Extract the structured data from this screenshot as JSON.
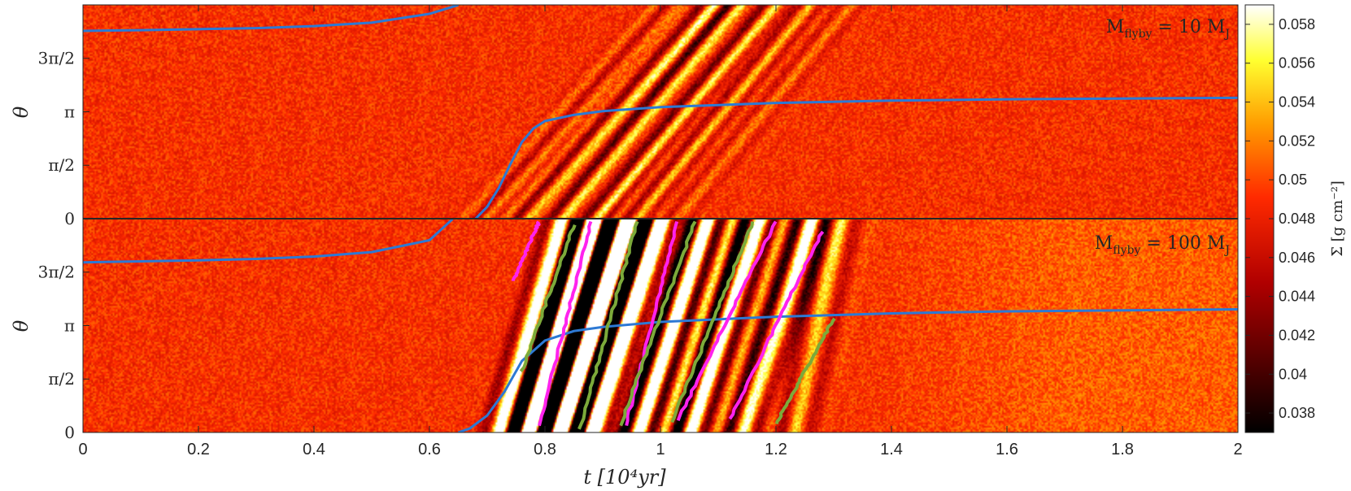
{
  "chart_data": {
    "type": "heatmap",
    "xlabel": "t [10⁴yr]",
    "ylabel": "θ",
    "xlim": [
      0,
      2
    ],
    "xticks": [
      0,
      0.2,
      0.4,
      0.6,
      0.8,
      1,
      1.2,
      1.4,
      1.6,
      1.8,
      2
    ],
    "xtick_labels": [
      "0",
      "0.2",
      "0.4",
      "0.6",
      "0.8",
      "1",
      "1.2",
      "1.4",
      "1.6",
      "1.8",
      "2"
    ],
    "ylim_rad": [
      0,
      6.283
    ],
    "yticks_rad": [
      0,
      1.5708,
      3.1416,
      4.7124
    ],
    "ytick_labels": [
      "0",
      "π/2",
      "π",
      "3π/2"
    ],
    "colorbar": {
      "label": "Σ [g cm⁻²]",
      "min": 0.037,
      "max": 0.059,
      "ticks": [
        0.038,
        0.04,
        0.042,
        0.044,
        0.046,
        0.048,
        0.05,
        0.052,
        0.054,
        0.056,
        0.058
      ],
      "tick_labels": [
        "0.038",
        "0.04",
        "0.042",
        "0.044",
        "0.046",
        "0.048",
        "0.05",
        "0.052",
        "0.054",
        "0.056",
        "0.058"
      ],
      "colormap": "hot"
    },
    "panels": [
      {
        "label": "M_flyby = 10 M_J",
        "label_main": "M",
        "label_sub": "flyby",
        "label_rest": " = 10 M",
        "label_sub2": "J",
        "background_sigma": 0.049,
        "perturber_angle": {
          "t": [
            0,
            0.1,
            0.2,
            0.3,
            0.4,
            0.5,
            0.6,
            0.65,
            0.68,
            0.7,
            0.72,
            0.74,
            0.76,
            0.78,
            0.8,
            0.85,
            0.9,
            1.0,
            1.2,
            1.4,
            1.6,
            2.0
          ],
          "theta": [
            5.52,
            5.54,
            5.57,
            5.6,
            5.66,
            5.76,
            6.02,
            6.28,
            0.0,
            0.35,
            0.9,
            1.6,
            2.25,
            2.65,
            2.87,
            3.05,
            3.16,
            3.28,
            3.4,
            3.47,
            3.51,
            3.55
          ]
        },
        "waves": [
          {
            "t_start": 0.69,
            "t_end": 1.02,
            "amplitude": 0.004
          },
          {
            "t_start": 0.76,
            "t_end": 1.08,
            "amplitude": 0.007
          },
          {
            "t_start": 0.82,
            "t_end": 1.13,
            "amplitude": 0.009
          },
          {
            "t_start": 0.88,
            "t_end": 1.19,
            "amplitude": 0.009
          },
          {
            "t_start": 0.95,
            "t_end": 1.25,
            "amplitude": 0.006
          },
          {
            "t_start": 1.02,
            "t_end": 1.32,
            "amplitude": 0.003
          }
        ]
      },
      {
        "label": "M_flyby = 100 M_J",
        "label_main": "M",
        "label_sub": "flyby",
        "label_rest": " = 100 M",
        "label_sub2": "J",
        "background_sigma": 0.049,
        "perturber_angle": {
          "t": [
            0,
            0.1,
            0.2,
            0.3,
            0.4,
            0.5,
            0.6,
            0.64,
            0.65,
            0.67,
            0.7,
            0.73,
            0.76,
            0.8,
            0.85,
            0.9,
            1.0,
            1.2,
            1.4,
            1.6,
            2.0
          ],
          "theta": [
            5.0,
            5.03,
            5.06,
            5.1,
            5.17,
            5.3,
            5.65,
            6.27,
            0.0,
            0.12,
            0.5,
            1.2,
            2.1,
            2.7,
            2.98,
            3.1,
            3.25,
            3.4,
            3.5,
            3.56,
            3.62
          ]
        },
        "waves": [
          {
            "t_start": 0.76,
            "t_end": 0.87,
            "amplitude": 0.03
          },
          {
            "t_start": 0.81,
            "t_end": 0.93,
            "amplitude": 0.03
          },
          {
            "t_start": 0.87,
            "t_end": 0.99,
            "amplitude": 0.03
          },
          {
            "t_start": 0.95,
            "t_end": 1.07,
            "amplitude": 0.022
          },
          {
            "t_start": 1.04,
            "t_end": 1.16,
            "amplitude": 0.018
          },
          {
            "t_start": 1.13,
            "t_end": 1.25,
            "amplitude": 0.012
          },
          {
            "t_start": 1.22,
            "t_end": 1.3,
            "amplitude": 0.006
          }
        ],
        "magenta_tracks": [
          {
            "t_start": 0.745,
            "t_end": 0.79,
            "theta_start": 4.45,
            "theta_end": 6.2
          },
          {
            "t_start": 0.79,
            "t_end": 0.88,
            "theta_start": 0.2,
            "theta_end": 6.2
          },
          {
            "t_start": 0.94,
            "t_end": 1.03,
            "theta_start": 0.2,
            "theta_end": 6.2
          },
          {
            "t_start": 1.03,
            "t_end": 1.2,
            "theta_start": 0.35,
            "theta_end": 6.2
          },
          {
            "t_start": 1.12,
            "t_end": 1.28,
            "theta_start": 0.4,
            "theta_end": 5.9
          }
        ],
        "green_tracks": [
          {
            "t_start": 0.76,
            "t_end": 0.85,
            "theta_start": 1.8,
            "theta_end": 6.1
          },
          {
            "t_start": 0.86,
            "t_end": 0.96,
            "theta_start": 0.1,
            "theta_end": 6.2
          },
          {
            "t_start": 0.93,
            "t_end": 1.06,
            "theta_start": 0.2,
            "theta_end": 6.2
          },
          {
            "t_start": 1.02,
            "t_end": 1.16,
            "theta_start": 0.3,
            "theta_end": 6.2
          },
          {
            "t_start": 1.2,
            "t_end": 1.3,
            "theta_start": 0.25,
            "theta_end": 3.35
          }
        ]
      }
    ]
  }
}
